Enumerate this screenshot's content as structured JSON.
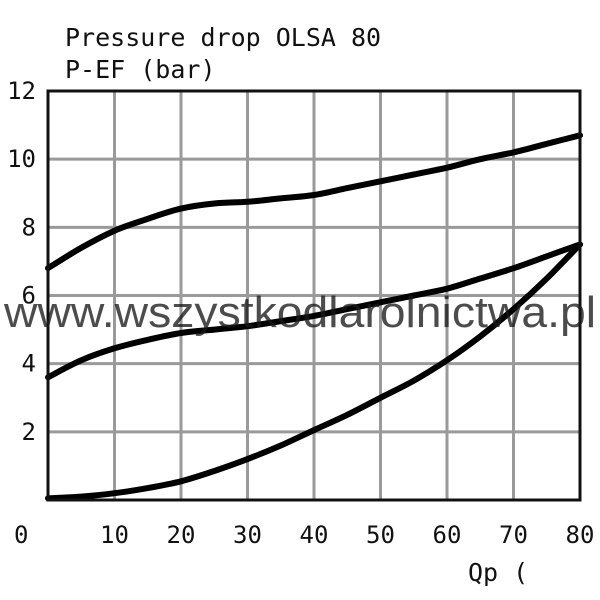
{
  "chart_data": {
    "type": "line",
    "title": "Pressure drop OLSA 80",
    "ylabel": "P-EF (bar)",
    "xlabel": "Qp (",
    "xlim": [
      0,
      80
    ],
    "ylim": [
      0,
      12
    ],
    "x_ticks": [
      "0",
      "10",
      "20",
      "30",
      "40",
      "50",
      "60",
      "70",
      "80"
    ],
    "y_ticks": [
      "2",
      "4",
      "6",
      "8",
      "10",
      "12"
    ],
    "grid": true,
    "series": [
      {
        "x": [
          0,
          5,
          10,
          15,
          20,
          25,
          30,
          35,
          40,
          45,
          50,
          55,
          60,
          65,
          70,
          75,
          80
        ],
        "y": [
          6.8,
          7.4,
          7.9,
          8.25,
          8.55,
          8.7,
          8.75,
          8.85,
          8.95,
          9.15,
          9.35,
          9.55,
          9.75,
          10.0,
          10.2,
          10.45,
          10.7
        ]
      },
      {
        "x": [
          0,
          5,
          10,
          15,
          20,
          25,
          30,
          35,
          40,
          45,
          50,
          55,
          60,
          65,
          70,
          75,
          80
        ],
        "y": [
          3.6,
          4.1,
          4.45,
          4.7,
          4.9,
          5.0,
          5.1,
          5.25,
          5.4,
          5.6,
          5.8,
          6.0,
          6.2,
          6.5,
          6.8,
          7.15,
          7.5
        ]
      },
      {
        "x": [
          0,
          5,
          10,
          15,
          20,
          25,
          30,
          35,
          40,
          45,
          50,
          55,
          60,
          65,
          70,
          75,
          80
        ],
        "y": [
          0.05,
          0.1,
          0.2,
          0.35,
          0.55,
          0.85,
          1.2,
          1.6,
          2.05,
          2.5,
          3.0,
          3.5,
          4.1,
          4.8,
          5.6,
          6.5,
          7.5
        ]
      }
    ]
  },
  "watermark": "www.wszystkodlarolnictwa.pl"
}
